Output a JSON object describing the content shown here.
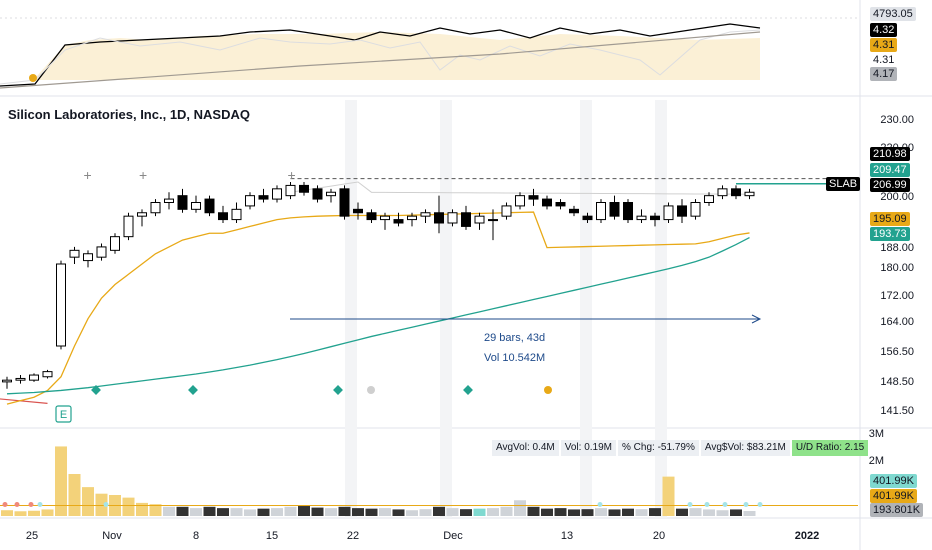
{
  "title": "Silicon Laboratories, Inc., 1D, NASDAQ",
  "ticker": "SLAB",
  "colors": {
    "up_candle": "#ffffff",
    "down_candle": "#000000",
    "ma_fast": "#e8a917",
    "ma_slow": "#22a28f",
    "resistance": "#555555",
    "measure": "#1e4a8a",
    "volume": "#f3d27a",
    "volume_dark": "#333333",
    "volume_light": "#cfd3d8"
  },
  "top_panel": {
    "labels": [
      {
        "text": "4793.05",
        "bg": "#e0e3e8",
        "fg": "#131722"
      },
      {
        "text": "4.32",
        "bg": "#000000",
        "fg": "#ffffff"
      },
      {
        "text": "4.31",
        "bg": "#e8a917",
        "fg": "#131722"
      },
      {
        "text": "4.31",
        "bg": "#ffffff",
        "fg": "#131722"
      },
      {
        "text": "4.17",
        "bg": "#b0b3b8",
        "fg": "#131722"
      }
    ]
  },
  "price_axis": [
    "230.00",
    "220.00",
    "200.00",
    "188.00",
    "180.00",
    "172.00",
    "164.00",
    "156.50",
    "148.50",
    "141.50"
  ],
  "price_tags": [
    {
      "text": "210.98",
      "bg": "#000000",
      "fg": "#ffffff"
    },
    {
      "text": "209.47",
      "bg": "#22a28f",
      "fg": "#ffffff"
    },
    {
      "text": "206.99",
      "bg": "#000000",
      "fg": "#ffffff"
    },
    {
      "text": "195.09",
      "bg": "#e8a917",
      "fg": "#131722"
    },
    {
      "text": "193.73",
      "bg": "#22a28f",
      "fg": "#ffffff"
    }
  ],
  "measure": {
    "bars": "29 bars, 43d",
    "vol": "Vol 10.542M"
  },
  "earnings_marker": "E",
  "volume_axis": [
    "3M",
    "2M"
  ],
  "volume_tags": [
    {
      "text": "401.99K",
      "bg": "#7fd9d0",
      "fg": "#131722"
    },
    {
      "text": "401.99K",
      "bg": "#e8a917",
      "fg": "#131722"
    },
    {
      "text": "193.801K",
      "bg": "#b0b3b8",
      "fg": "#131722"
    }
  ],
  "stats": [
    {
      "text": "AvgVol: 0.4M"
    },
    {
      "text": "Vol: 0.19M"
    },
    {
      "text": "% Chg: -51.79%"
    },
    {
      "text": "Avg$Vol: $83.21M"
    },
    {
      "text": "U/D Ratio: 2.15"
    }
  ],
  "x_axis": [
    "25",
    "Nov",
    "8",
    "15",
    "22",
    "Dec",
    "13",
    "20",
    "2022"
  ],
  "chart_data": {
    "type": "candlestick",
    "title": "Silicon Laboratories, Inc., 1D, NASDAQ",
    "ylim": [
      138,
      234
    ],
    "candles": [
      {
        "o": 151.5,
        "h": 153,
        "l": 149.5,
        "c": 152
      },
      {
        "o": 152,
        "h": 153.5,
        "l": 151,
        "c": 152.5
      },
      {
        "o": 152,
        "h": 154,
        "l": 151.5,
        "c": 153.5
      },
      {
        "o": 153,
        "h": 155,
        "l": 152.5,
        "c": 154.5
      },
      {
        "o": 162,
        "h": 187,
        "l": 161,
        "c": 186
      },
      {
        "o": 188,
        "h": 191,
        "l": 186,
        "c": 190
      },
      {
        "o": 187,
        "h": 190,
        "l": 185,
        "c": 189
      },
      {
        "o": 188,
        "h": 192,
        "l": 187,
        "c": 191
      },
      {
        "o": 190,
        "h": 195,
        "l": 189,
        "c": 194
      },
      {
        "o": 194,
        "h": 201,
        "l": 193,
        "c": 200
      },
      {
        "o": 200,
        "h": 202,
        "l": 197,
        "c": 201
      },
      {
        "o": 201,
        "h": 205,
        "l": 200,
        "c": 204
      },
      {
        "o": 204,
        "h": 207,
        "l": 202,
        "c": 205
      },
      {
        "o": 206,
        "h": 208,
        "l": 201,
        "c": 202
      },
      {
        "o": 202,
        "h": 206,
        "l": 201,
        "c": 204
      },
      {
        "o": 205,
        "h": 206,
        "l": 200,
        "c": 201
      },
      {
        "o": 201,
        "h": 203,
        "l": 198,
        "c": 199
      },
      {
        "o": 199,
        "h": 204,
        "l": 198,
        "c": 202
      },
      {
        "o": 203,
        "h": 207,
        "l": 202,
        "c": 206
      },
      {
        "o": 206,
        "h": 208,
        "l": 204,
        "c": 205
      },
      {
        "o": 205,
        "h": 209,
        "l": 204,
        "c": 208
      },
      {
        "o": 206,
        "h": 210,
        "l": 205,
        "c": 209
      },
      {
        "o": 209,
        "h": 210,
        "l": 206,
        "c": 207
      },
      {
        "o": 208,
        "h": 209,
        "l": 204,
        "c": 205
      },
      {
        "o": 206,
        "h": 208,
        "l": 204,
        "c": 207
      },
      {
        "o": 208,
        "h": 209,
        "l": 199,
        "c": 200
      },
      {
        "o": 202,
        "h": 204,
        "l": 199,
        "c": 201
      },
      {
        "o": 201,
        "h": 202,
        "l": 198,
        "c": 199
      },
      {
        "o": 199,
        "h": 201,
        "l": 196,
        "c": 200
      },
      {
        "o": 199,
        "h": 201,
        "l": 197,
        "c": 198
      },
      {
        "o": 199,
        "h": 201,
        "l": 197,
        "c": 200
      },
      {
        "o": 200,
        "h": 202,
        "l": 198,
        "c": 201
      },
      {
        "o": 201,
        "h": 206,
        "l": 195,
        "c": 198
      },
      {
        "o": 198,
        "h": 202,
        "l": 197,
        "c": 201
      },
      {
        "o": 201,
        "h": 203,
        "l": 196,
        "c": 197
      },
      {
        "o": 198,
        "h": 201,
        "l": 196,
        "c": 200
      },
      {
        "o": 199,
        "h": 202,
        "l": 193,
        "c": 199
      },
      {
        "o": 200,
        "h": 204,
        "l": 199,
        "c": 203
      },
      {
        "o": 203,
        "h": 207,
        "l": 202,
        "c": 206
      },
      {
        "o": 206,
        "h": 208,
        "l": 203,
        "c": 205
      },
      {
        "o": 205,
        "h": 206,
        "l": 202,
        "c": 203
      },
      {
        "o": 204,
        "h": 205,
        "l": 202,
        "c": 203
      },
      {
        "o": 202,
        "h": 203,
        "l": 200,
        "c": 201
      },
      {
        "o": 200,
        "h": 201,
        "l": 198,
        "c": 199
      },
      {
        "o": 199,
        "h": 205,
        "l": 198,
        "c": 204
      },
      {
        "o": 204,
        "h": 206,
        "l": 199,
        "c": 200
      },
      {
        "o": 204,
        "h": 205,
        "l": 198,
        "c": 199
      },
      {
        "o": 199,
        "h": 202,
        "l": 198,
        "c": 200
      },
      {
        "o": 200,
        "h": 201,
        "l": 197,
        "c": 199
      },
      {
        "o": 199,
        "h": 204,
        "l": 198,
        "c": 203
      },
      {
        "o": 203,
        "h": 205,
        "l": 198,
        "c": 200
      },
      {
        "o": 200,
        "h": 205,
        "l": 199,
        "c": 204
      },
      {
        "o": 204,
        "h": 207,
        "l": 203,
        "c": 206
      },
      {
        "o": 206,
        "h": 209,
        "l": 205,
        "c": 208
      },
      {
        "o": 208,
        "h": 209,
        "l": 205,
        "c": 206
      },
      {
        "o": 206,
        "h": 208,
        "l": 205,
        "c": 207
      }
    ],
    "ma_fast": [
      145,
      146,
      147,
      149,
      153,
      162,
      170,
      176,
      180,
      183,
      186,
      189,
      191,
      193,
      194,
      195,
      195,
      196,
      197,
      198,
      199,
      199.5,
      199.8,
      200,
      200.1,
      200.2,
      200.2,
      200.2,
      200.2,
      200.2,
      200.3,
      200.4,
      200.5,
      200.6,
      200.7,
      200.8,
      200.9,
      201,
      201.1,
      201.2,
      190.8,
      190.9,
      191,
      191.1,
      191.2,
      191.3,
      191.4,
      191.5,
      191.6,
      191.7,
      191.8,
      191.9,
      192.5,
      193.5,
      194.5,
      195.09
    ],
    "ma_slow": [
      148,
      148.2,
      148.4,
      148.7,
      149,
      149.4,
      149.8,
      150.3,
      150.8,
      151.3,
      151.8,
      152.3,
      152.8,
      153.3,
      153.8,
      154.4,
      155,
      155.7,
      156.4,
      157.2,
      158,
      158.9,
      159.8,
      160.8,
      161.8,
      162.8,
      163.8,
      164.8,
      165.7,
      166.6,
      167.5,
      168.4,
      169.3,
      170.2,
      171.1,
      172,
      172.9,
      173.8,
      174.7,
      175.6,
      176.5,
      177.4,
      178.3,
      179.2,
      180.1,
      181,
      181.9,
      182.8,
      183.7,
      184.6,
      185.6,
      186.7,
      188,
      189.8,
      191.7,
      193.73
    ],
    "resistance_level": 210.98,
    "volume": [
      0.22,
      0.18,
      0.2,
      0.25,
      2.65,
      1.6,
      1.1,
      0.85,
      0.8,
      0.7,
      0.5,
      0.45,
      0.35,
      0.35,
      0.3,
      0.35,
      0.3,
      0.3,
      0.25,
      0.28,
      0.3,
      0.35,
      0.38,
      0.32,
      0.3,
      0.35,
      0.3,
      0.28,
      0.3,
      0.25,
      0.22,
      0.26,
      0.35,
      0.3,
      0.26,
      0.28,
      0.3,
      0.35,
      0.6,
      0.35,
      0.28,
      0.3,
      0.25,
      0.26,
      0.3,
      0.25,
      0.28,
      0.26,
      0.3,
      1.5,
      0.28,
      0.3,
      0.25,
      0.22,
      0.25,
      0.19
    ],
    "volume_ylim": [
      0,
      3.2
    ],
    "vol_avg": 0.4
  }
}
